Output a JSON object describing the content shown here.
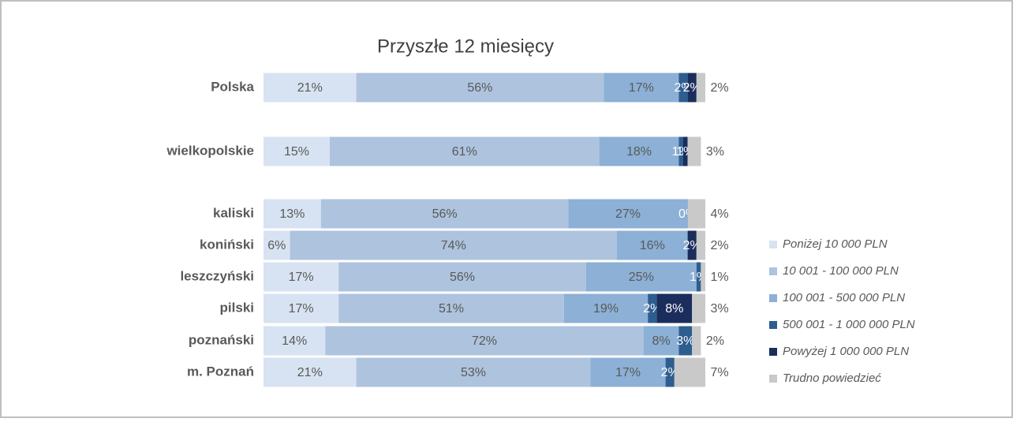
{
  "chart_data": {
    "type": "stacked_bar",
    "orientation": "horizontal",
    "title": "Przyszłe 12 miesięcy",
    "categories": [
      "Polska",
      "wielkopolskie",
      "kaliski",
      "koniński",
      "leszczyński",
      "pilski",
      "poznański",
      "m. Poznań"
    ],
    "series": [
      {
        "name": "Poniżej 10 000 PLN",
        "color": "#d7e3f2",
        "values": [
          21,
          15,
          13,
          6,
          17,
          17,
          14,
          21
        ]
      },
      {
        "name": "10 001 - 100 000 PLN",
        "color": "#adc3de",
        "values": [
          56,
          61,
          56,
          74,
          56,
          51,
          72,
          53
        ]
      },
      {
        "name": "100 001 -  500 000 PLN",
        "color": "#8cb0d6",
        "values": [
          17,
          18,
          27,
          16,
          25,
          19,
          8,
          17
        ]
      },
      {
        "name": "500 001 -  1 000 000 PLN",
        "color": "#2e5d8f",
        "values": [
          2,
          1,
          null,
          null,
          1,
          2,
          3,
          2
        ]
      },
      {
        "name": "Powyżej 1 000 000 PLN",
        "color": "#1b2d5c",
        "values": [
          2,
          1,
          0,
          2,
          null,
          8,
          null,
          null
        ]
      },
      {
        "name": "Trudno powiedzieć",
        "color": "#c9c9c9",
        "values": [
          2,
          3,
          4,
          2,
          1,
          3,
          2,
          7
        ]
      }
    ],
    "value_labels_format": "percent",
    "legend": "right"
  }
}
